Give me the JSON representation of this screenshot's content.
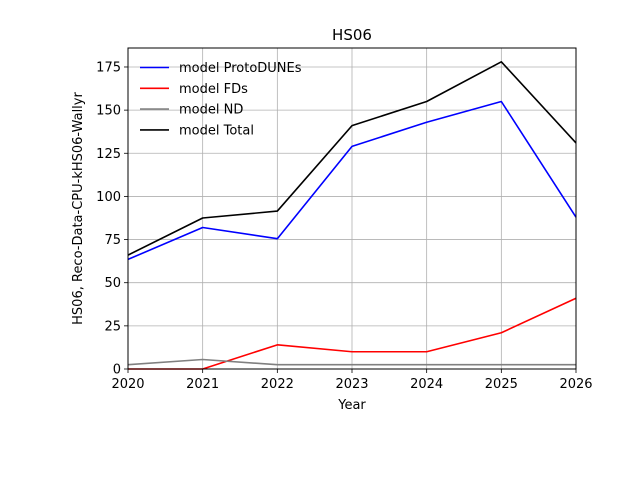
{
  "chart_data": {
    "type": "line",
    "title": "HS06",
    "xlabel": "Year",
    "ylabel": "HS06, Reco-Data-CPU-kHS06-Wallyr",
    "xlim": [
      2020,
      2026
    ],
    "ylim": [
      0,
      186
    ],
    "x_ticks": [
      2020,
      2021,
      2022,
      2023,
      2024,
      2025,
      2026
    ],
    "y_ticks": [
      0,
      25,
      50,
      75,
      100,
      125,
      150,
      175
    ],
    "grid": true,
    "legend_position": "top-left",
    "x": [
      2020,
      2021,
      2022,
      2023,
      2024,
      2025,
      2026
    ],
    "series": [
      {
        "name": "model ProtoDUNEs",
        "color": "#0000ff",
        "values": [
          63.5,
          82,
          75.5,
          129,
          143,
          155,
          88
        ]
      },
      {
        "name": "model FDs",
        "color": "#ff0000",
        "values": [
          0,
          0,
          14,
          10,
          10,
          21,
          41
        ]
      },
      {
        "name": "model ND",
        "color": "#808080",
        "values": [
          2.5,
          5.5,
          2.5,
          2.5,
          2.5,
          2.5,
          2.5
        ]
      },
      {
        "name": "model Total",
        "color": "#000000",
        "values": [
          66,
          87.5,
          91.5,
          141,
          155,
          178,
          131
        ]
      }
    ]
  }
}
